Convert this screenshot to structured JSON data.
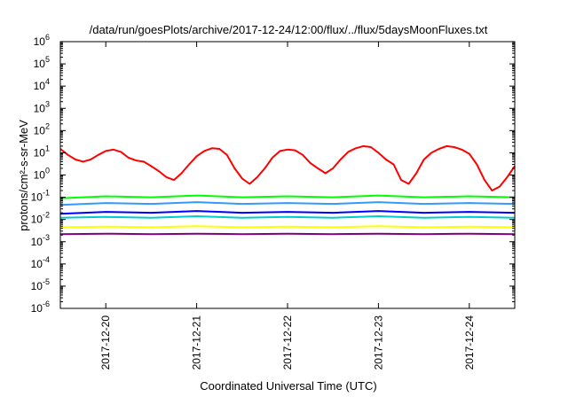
{
  "chart_data": {
    "type": "line",
    "title": "/data/run/goesPlots/archive/2017-12-24/12:00/flux/../flux/5daysMoonFluxes.txt",
    "xlabel": "Coordinated Universal Time (UTC)",
    "ylabel": "protons/cm²-s-sr-MeV",
    "yscale": "log",
    "ylim": [
      1e-06,
      1000000.0
    ],
    "y_ticks": [
      {
        "value": 1e-06,
        "base": "10",
        "exp": "-6"
      },
      {
        "value": 1e-05,
        "base": "10",
        "exp": "-5"
      },
      {
        "value": 0.0001,
        "base": "10",
        "exp": "-4"
      },
      {
        "value": 0.001,
        "base": "10",
        "exp": "-3"
      },
      {
        "value": 0.01,
        "base": "10",
        "exp": "-2"
      },
      {
        "value": 0.1,
        "base": "10",
        "exp": "-1"
      },
      {
        "value": 1,
        "base": "10",
        "exp": "0"
      },
      {
        "value": 10,
        "base": "10",
        "exp": "1"
      },
      {
        "value": 100,
        "base": "10",
        "exp": "2"
      },
      {
        "value": 1000,
        "base": "10",
        "exp": "3"
      },
      {
        "value": 10000,
        "base": "10",
        "exp": "4"
      },
      {
        "value": 100000,
        "base": "10",
        "exp": "5"
      },
      {
        "value": 1000000,
        "base": "10",
        "exp": "6"
      }
    ],
    "xlim": [
      "2017-12-19 12:00",
      "2017-12-24 12:00"
    ],
    "x_ticks": [
      "2017-12-20",
      "2017-12-21",
      "2017-12-22",
      "2017-12-23",
      "2017-12-24"
    ],
    "grid": false,
    "legend": "none",
    "series": [
      {
        "color": "#ff0000",
        "x": [
          "2017-12-19 12:00",
          "2017-12-19 14:00",
          "2017-12-19 16:00",
          "2017-12-19 18:00",
          "2017-12-19 20:00",
          "2017-12-19 22:00",
          "2017-12-20 00:00",
          "2017-12-20 02:00",
          "2017-12-20 04:00",
          "2017-12-20 06:00",
          "2017-12-20 08:00",
          "2017-12-20 10:00",
          "2017-12-20 12:00",
          "2017-12-20 14:00",
          "2017-12-20 16:00",
          "2017-12-20 18:00",
          "2017-12-20 20:00",
          "2017-12-20 22:00",
          "2017-12-21 00:00",
          "2017-12-21 02:00",
          "2017-12-21 04:00",
          "2017-12-21 06:00",
          "2017-12-21 08:00",
          "2017-12-21 10:00",
          "2017-12-21 12:00",
          "2017-12-21 14:00",
          "2017-12-21 16:00",
          "2017-12-21 18:00",
          "2017-12-21 20:00",
          "2017-12-21 22:00",
          "2017-12-22 00:00",
          "2017-12-22 02:00",
          "2017-12-22 04:00",
          "2017-12-22 06:00",
          "2017-12-22 08:00",
          "2017-12-22 10:00",
          "2017-12-22 12:00",
          "2017-12-22 14:00",
          "2017-12-22 16:00",
          "2017-12-22 18:00",
          "2017-12-22 20:00",
          "2017-12-22 22:00",
          "2017-12-23 00:00",
          "2017-12-23 02:00",
          "2017-12-23 04:00",
          "2017-12-23 06:00",
          "2017-12-23 08:00",
          "2017-12-23 10:00",
          "2017-12-23 12:00",
          "2017-12-23 14:00",
          "2017-12-23 16:00",
          "2017-12-23 18:00",
          "2017-12-23 20:00",
          "2017-12-23 22:00",
          "2017-12-24 00:00",
          "2017-12-24 02:00",
          "2017-12-24 04:00",
          "2017-12-24 06:00",
          "2017-12-24 08:00",
          "2017-12-24 10:00",
          "2017-12-24 12:00"
        ],
        "y": [
          15,
          8,
          5,
          4,
          5,
          8,
          12,
          14,
          11,
          6,
          4.5,
          4,
          2.5,
          1.5,
          0.8,
          0.6,
          1.2,
          3,
          7,
          12,
          16,
          15,
          8,
          2,
          0.7,
          0.4,
          0.8,
          2,
          6,
          12,
          14,
          13,
          8,
          3.5,
          2,
          1.2,
          2,
          5,
          11,
          16,
          20,
          18,
          10,
          5,
          3,
          0.6,
          0.4,
          1.2,
          5,
          10,
          15,
          20,
          18,
          14,
          9,
          3,
          0.6,
          0.2,
          0.3,
          0.8,
          2.5
        ]
      },
      {
        "color": "#00ff00",
        "x": [
          "2017-12-19 12:00",
          "2017-12-20 00:00",
          "2017-12-20 12:00",
          "2017-12-21 00:00",
          "2017-12-21 12:00",
          "2017-12-22 00:00",
          "2017-12-22 12:00",
          "2017-12-23 00:00",
          "2017-12-23 12:00",
          "2017-12-24 00:00",
          "2017-12-24 12:00"
        ],
        "y": [
          0.09,
          0.11,
          0.1,
          0.12,
          0.1,
          0.11,
          0.1,
          0.12,
          0.1,
          0.11,
          0.1
        ]
      },
      {
        "color": "#3399ff",
        "x": [
          "2017-12-19 12:00",
          "2017-12-20 00:00",
          "2017-12-20 12:00",
          "2017-12-21 00:00",
          "2017-12-21 12:00",
          "2017-12-22 00:00",
          "2017-12-22 12:00",
          "2017-12-23 00:00",
          "2017-12-23 12:00",
          "2017-12-24 00:00",
          "2017-12-24 12:00"
        ],
        "y": [
          0.045,
          0.055,
          0.05,
          0.06,
          0.05,
          0.055,
          0.05,
          0.06,
          0.05,
          0.055,
          0.05
        ]
      },
      {
        "color": "#0000ff",
        "x": [
          "2017-12-19 12:00",
          "2017-12-20 00:00",
          "2017-12-20 12:00",
          "2017-12-21 00:00",
          "2017-12-21 12:00",
          "2017-12-22 00:00",
          "2017-12-22 12:00",
          "2017-12-23 00:00",
          "2017-12-23 12:00",
          "2017-12-24 00:00",
          "2017-12-24 12:00"
        ],
        "y": [
          0.018,
          0.022,
          0.02,
          0.024,
          0.02,
          0.022,
          0.02,
          0.024,
          0.02,
          0.022,
          0.02
        ]
      },
      {
        "color": "#00cccc",
        "x": [
          "2017-12-19 12:00",
          "2017-12-20 00:00",
          "2017-12-20 12:00",
          "2017-12-21 00:00",
          "2017-12-21 12:00",
          "2017-12-22 00:00",
          "2017-12-22 12:00",
          "2017-12-23 00:00",
          "2017-12-23 12:00",
          "2017-12-24 00:00",
          "2017-12-24 12:00"
        ],
        "y": [
          0.012,
          0.013,
          0.012,
          0.014,
          0.012,
          0.013,
          0.012,
          0.014,
          0.012,
          0.013,
          0.012
        ]
      },
      {
        "color": "#ffff00",
        "x": [
          "2017-12-19 12:00",
          "2017-12-20 00:00",
          "2017-12-20 12:00",
          "2017-12-21 00:00",
          "2017-12-21 12:00",
          "2017-12-22 00:00",
          "2017-12-22 12:00",
          "2017-12-23 00:00",
          "2017-12-23 12:00",
          "2017-12-24 00:00",
          "2017-12-24 12:00"
        ],
        "y": [
          0.0045,
          0.0048,
          0.0045,
          0.005,
          0.0045,
          0.0048,
          0.0045,
          0.005,
          0.0045,
          0.0048,
          0.0045
        ]
      },
      {
        "color": "#800080",
        "x": [
          "2017-12-19 12:00",
          "2017-12-20 00:00",
          "2017-12-20 12:00",
          "2017-12-21 00:00",
          "2017-12-21 12:00",
          "2017-12-22 00:00",
          "2017-12-22 12:00",
          "2017-12-23 00:00",
          "2017-12-23 12:00",
          "2017-12-24 00:00",
          "2017-12-24 12:00"
        ],
        "y": [
          0.0022,
          0.0023,
          0.0022,
          0.0023,
          0.0022,
          0.0023,
          0.0022,
          0.0023,
          0.0022,
          0.0023,
          0.0022
        ]
      }
    ]
  }
}
